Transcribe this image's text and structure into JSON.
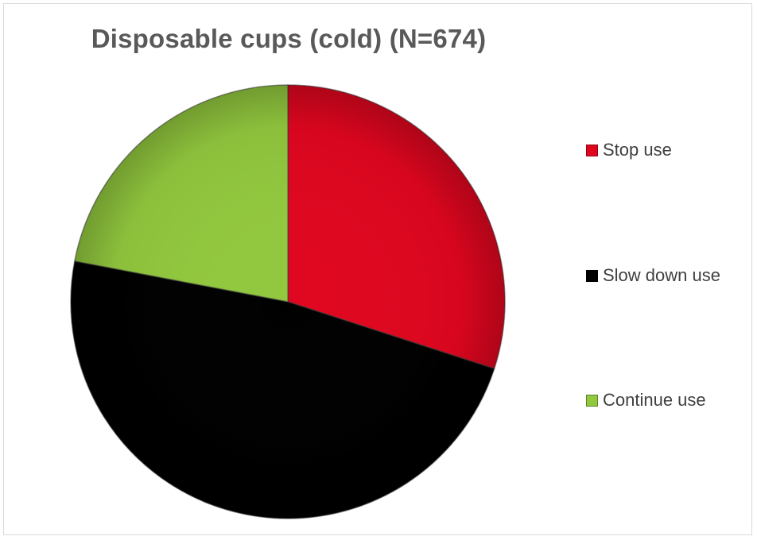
{
  "chart_data": {
    "type": "pie",
    "title": "Disposable cups (cold) (N=674)",
    "slices": [
      {
        "label": "Stop use",
        "value": 30,
        "color": "#e0061f"
      },
      {
        "label": "Slow down use",
        "value": 48,
        "color": "#000000"
      },
      {
        "label": "Continue use",
        "value": 22,
        "color": "#92c83e"
      }
    ],
    "legend_position": "right"
  }
}
